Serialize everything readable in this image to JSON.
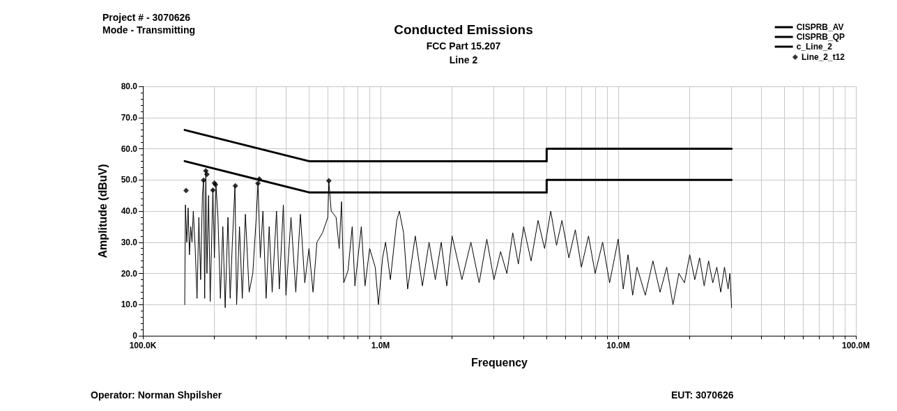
{
  "chart_data": {
    "type": "line",
    "title": "Conducted Emissions",
    "subtitle": "FCC Part 15.207\nLine 2",
    "xlabel": "Frequency",
    "ylabel": "Amplitude (dBuV)",
    "annotations": [
      "Project # - 3070626",
      "Mode - Transmitting",
      "Operator: Norman Shpilsher",
      "EUT: 3070626"
    ],
    "log": "x",
    "grid": true,
    "legend": "top right",
    "line_style": "solid",
    "xlim": [
      100000,
      100000000
    ],
    "xticks": [
      {
        "value": 100000,
        "label": "100.0K"
      },
      {
        "value": 1000000,
        "label": "1.0M"
      },
      {
        "value": 10000000,
        "label": "10.0M"
      },
      {
        "value": 100000000,
        "label": "100.0M"
      }
    ],
    "ylim": [
      0,
      80
    ],
    "yticks": [
      0,
      {
        "value": 10,
        "label": "10.0"
      },
      {
        "value": 20,
        "label": "20.0"
      },
      {
        "value": 30,
        "label": "30.0"
      },
      {
        "value": 40,
        "label": "40.0"
      },
      {
        "value": 50,
        "label": "50.0"
      },
      {
        "value": 60,
        "label": "60.0"
      },
      {
        "value": 70,
        "label": "70.0"
      },
      {
        "value": 80,
        "label": "80.0"
      }
    ],
    "series": [
      {
        "name": "CISPRB_AV",
        "color": "#000000",
        "marker": "none",
        "x": [
          150000,
          500000,
          5000000,
          5000000,
          30000000
        ],
        "values": [
          56,
          46,
          46,
          50,
          50
        ]
      },
      {
        "name": "CISPRB_QP",
        "color": "#000000",
        "marker": "none",
        "x": [
          150000,
          500000,
          5000000,
          5000000,
          30000000
        ],
        "values": [
          66,
          56,
          56,
          60,
          60
        ]
      },
      {
        "name": "c_Line_2",
        "color": "#000000",
        "marker": "none",
        "x": [
          150000,
          151000,
          153000,
          155000,
          157000,
          159000,
          161000,
          163000,
          166000,
          169000,
          172000,
          175000,
          178000,
          180000,
          182000,
          184000,
          186000,
          189000,
          192000,
          197000,
          200000,
          203000,
          207000,
          212000,
          217000,
          222000,
          228000,
          233000,
          238000,
          244000,
          248000,
          255000,
          262000,
          270000,
          280000,
          290000,
          300000,
          305000,
          312000,
          320000,
          330000,
          340000,
          350000,
          365000,
          375000,
          390000,
          400000,
          420000,
          440000,
          460000,
          480000,
          500000,
          520000,
          540000,
          570000,
          600000,
          606000,
          620000,
          650000,
          670000,
          685000,
          700000,
          730000,
          760000,
          780000,
          830000,
          860000,
          900000,
          950000,
          980000,
          1020000,
          1050000,
          1100000,
          1170000,
          1200000,
          1250000,
          1300000,
          1400000,
          1500000,
          1600000,
          1700000,
          1800000,
          1900000,
          2000000,
          2200000,
          2400000,
          2600000,
          2800000,
          3000000,
          3200000,
          3400000,
          3600000,
          3800000,
          4000000,
          4300000,
          4600000,
          4900000,
          5200000,
          5500000,
          5800000,
          6200000,
          6600000,
          7000000,
          7500000,
          8000000,
          8600000,
          9200000,
          10000000,
          10500000,
          11000000,
          11500000,
          12000000,
          13000000,
          14000000,
          15000000,
          16000000,
          17000000,
          18000000,
          19000000,
          20000000,
          21000000,
          22000000,
          23000000,
          24000000,
          25000000,
          26000000,
          27000000,
          28000000,
          29000000,
          29500000,
          30000000
        ],
        "values": [
          10,
          42,
          30,
          41,
          26,
          35,
          30,
          40,
          28,
          12,
          38,
          18,
          45,
          50,
          12,
          53,
          20,
          45,
          11,
          47,
          25,
          48.5,
          38,
          12,
          35,
          9,
          38,
          12,
          30,
          48,
          10,
          35,
          12,
          39,
          14,
          20,
          38,
          49,
          25,
          40,
          12,
          35,
          14,
          40,
          15,
          42,
          13,
          38,
          14,
          39,
          17,
          28,
          14,
          30,
          33,
          38,
          49.5,
          40,
          38,
          28,
          43,
          17,
          21,
          35,
          16,
          35,
          16,
          28,
          22,
          10,
          25,
          30,
          18,
          37,
          40,
          33,
          15,
          32,
          16,
          30,
          18,
          30,
          16,
          32,
          18,
          30,
          17,
          31,
          18,
          27,
          20,
          33,
          23,
          35,
          24,
          37,
          28,
          40,
          29,
          37,
          25,
          34,
          22,
          32,
          20,
          30,
          17,
          31,
          15,
          26,
          13,
          22,
          13,
          24,
          14,
          22,
          10,
          20,
          17,
          26,
          18,
          25,
          16,
          24,
          17,
          22,
          14,
          22,
          15,
          20,
          9
        ]
      },
      {
        "name": "Line_2_t12",
        "type": "scatter",
        "color": "#000000",
        "marker": "diamond",
        "x": [
          152000,
          180000,
          184000,
          186000,
          197000,
          200000,
          202000,
          245000,
          305000,
          309000,
          606000
        ],
        "values": [
          46.6,
          49.9,
          52.9,
          51.8,
          46.7,
          49,
          48.5,
          48.1,
          48.9,
          50.3,
          49.7
        ]
      }
    ]
  }
}
